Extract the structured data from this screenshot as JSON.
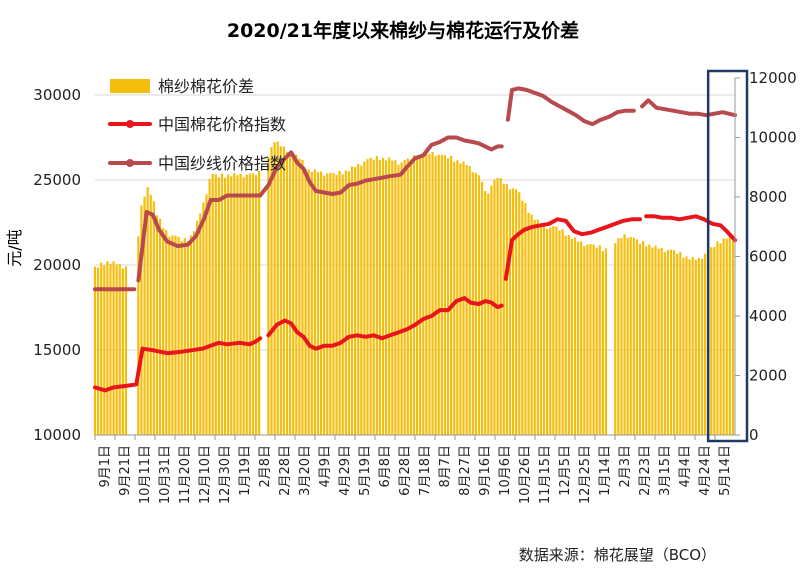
{
  "chart_data": {
    "type": "bar",
    "title": "2020/21年度以来棉纱与棉花运行及价差",
    "ylabel": "元/吨",
    "source": "数据来源：棉花展望（BCO）",
    "ylim": [
      10000,
      31000
    ],
    "y_ticks": [
      10000,
      15000,
      20000,
      25000,
      30000
    ],
    "y2lim": [
      0,
      12000
    ],
    "y2_ticks": [
      0,
      2000,
      4000,
      6000,
      8000,
      10000,
      12000
    ],
    "x_tick_labels": [
      "9月1日",
      "9月21日",
      "10月11日",
      "10月31日",
      "11月20日",
      "12月10日",
      "12月30日",
      "1月19日",
      "2月8日",
      "2月28日",
      "3月20日",
      "4月9日",
      "4月29日",
      "5月19日",
      "6月8日",
      "6月28日",
      "7月18日",
      "8月7日",
      "8月27日",
      "9月16日",
      "10月6日",
      "10月26日",
      "11月15日",
      "12月5日",
      "12月25日",
      "1月14日",
      "2月3日",
      "2月23日",
      "3月15日",
      "4月4日",
      "4月24日",
      "5月14日"
    ],
    "legend": [
      "棉纱棉花价差",
      "中国棉花价格指数",
      "中国纱线价格指数"
    ],
    "colors": {
      "spread": "#F5BE0C",
      "cotton": "#E8161B",
      "yarn": "#B84A4D",
      "highlight_box": "#1F3864"
    },
    "x_range": [
      0,
      620
    ],
    "series": [
      {
        "name": "棉纱棉花价差",
        "axis": "left",
        "type": "bar",
        "points": [
          [
            0,
            19800
          ],
          [
            12,
            20200
          ],
          [
            24,
            20000
          ],
          [
            30,
            19900
          ],
          [
            40,
            20000
          ],
          [
            44,
            23200
          ],
          [
            50,
            24500
          ],
          [
            55,
            24200
          ],
          [
            60,
            23000
          ],
          [
            66,
            22200
          ],
          [
            72,
            21800
          ],
          [
            80,
            21600
          ],
          [
            86,
            21400
          ],
          [
            92,
            21600
          ],
          [
            98,
            22300
          ],
          [
            106,
            23800
          ],
          [
            112,
            25300
          ],
          [
            120,
            25200
          ],
          [
            130,
            25300
          ],
          [
            140,
            25300
          ],
          [
            154,
            25300
          ],
          [
            160,
            25400
          ],
          [
            168,
            26500
          ],
          [
            174,
            27300
          ],
          [
            180,
            27000
          ],
          [
            186,
            26800
          ],
          [
            192,
            26500
          ],
          [
            198,
            26300
          ],
          [
            206,
            25600
          ],
          [
            214,
            25500
          ],
          [
            222,
            25400
          ],
          [
            232,
            25300
          ],
          [
            242,
            25500
          ],
          [
            250,
            25700
          ],
          [
            258,
            26000
          ],
          [
            266,
            26200
          ],
          [
            276,
            26300
          ],
          [
            286,
            26200
          ],
          [
            296,
            26000
          ],
          [
            304,
            26200
          ],
          [
            312,
            26400
          ],
          [
            320,
            26500
          ],
          [
            328,
            26600
          ],
          [
            336,
            26400
          ],
          [
            344,
            26300
          ],
          [
            352,
            26100
          ],
          [
            360,
            25900
          ],
          [
            366,
            25600
          ],
          [
            372,
            25200
          ],
          [
            378,
            24400
          ],
          [
            380,
            23800
          ],
          [
            384,
            24800
          ],
          [
            390,
            25200
          ],
          [
            396,
            24800
          ],
          [
            402,
            24600
          ],
          [
            410,
            24300
          ],
          [
            416,
            23600
          ],
          [
            422,
            23000
          ],
          [
            428,
            22600
          ],
          [
            434,
            22400
          ],
          [
            440,
            22200
          ],
          [
            446,
            22200
          ],
          [
            452,
            22000
          ],
          [
            460,
            21700
          ],
          [
            468,
            21400
          ],
          [
            476,
            21200
          ],
          [
            484,
            21100
          ],
          [
            490,
            21000
          ],
          [
            494,
            20900
          ],
          [
            502,
            21300
          ],
          [
            508,
            21500
          ],
          [
            514,
            21800
          ],
          [
            520,
            21600
          ],
          [
            528,
            21300
          ],
          [
            536,
            21200
          ],
          [
            544,
            21000
          ],
          [
            552,
            20900
          ],
          [
            560,
            20800
          ],
          [
            568,
            20600
          ],
          [
            576,
            20400
          ],
          [
            584,
            20300
          ],
          [
            590,
            20600
          ],
          [
            596,
            20900
          ],
          [
            602,
            21200
          ],
          [
            608,
            21500
          ],
          [
            614,
            21700
          ],
          [
            620,
            21300
          ]
        ],
        "gaps": [
          [
            31,
            40
          ],
          [
            161,
            168
          ],
          [
            381,
            384
          ],
          [
            495,
            502
          ]
        ]
      },
      {
        "name": "中国棉花价格指数",
        "axis": "right",
        "type": "line",
        "points": [
          [
            0,
            1600
          ],
          [
            10,
            1500
          ],
          [
            18,
            1600
          ],
          [
            30,
            1650
          ],
          [
            40,
            1700
          ],
          [
            46,
            2900
          ],
          [
            56,
            2850
          ],
          [
            70,
            2750
          ],
          [
            84,
            2800
          ],
          [
            94,
            2850
          ],
          [
            104,
            2900
          ],
          [
            112,
            3000
          ],
          [
            120,
            3100
          ],
          [
            128,
            3050
          ],
          [
            140,
            3100
          ],
          [
            150,
            3050
          ],
          [
            156,
            3150
          ],
          [
            160,
            3250
          ],
          [
            168,
            3350
          ],
          [
            176,
            3700
          ],
          [
            184,
            3850
          ],
          [
            190,
            3750
          ],
          [
            196,
            3450
          ],
          [
            202,
            3300
          ],
          [
            208,
            3000
          ],
          [
            214,
            2900
          ],
          [
            222,
            3000
          ],
          [
            230,
            3000
          ],
          [
            238,
            3100
          ],
          [
            246,
            3300
          ],
          [
            254,
            3350
          ],
          [
            262,
            3300
          ],
          [
            270,
            3350
          ],
          [
            278,
            3250
          ],
          [
            286,
            3350
          ],
          [
            294,
            3450
          ],
          [
            302,
            3550
          ],
          [
            310,
            3700
          ],
          [
            318,
            3900
          ],
          [
            326,
            4000
          ],
          [
            334,
            4200
          ],
          [
            342,
            4200
          ],
          [
            350,
            4500
          ],
          [
            358,
            4600
          ],
          [
            364,
            4450
          ],
          [
            372,
            4400
          ],
          [
            378,
            4500
          ],
          [
            384,
            4450
          ],
          [
            390,
            4300
          ],
          [
            394,
            4350
          ],
          [
            398,
            5250
          ],
          [
            404,
            6550
          ],
          [
            410,
            6750
          ],
          [
            416,
            6900
          ],
          [
            424,
            7000
          ],
          [
            432,
            7050
          ],
          [
            440,
            7100
          ],
          [
            448,
            7250
          ],
          [
            456,
            7200
          ],
          [
            464,
            6850
          ],
          [
            472,
            6750
          ],
          [
            480,
            6800
          ],
          [
            488,
            6900
          ],
          [
            496,
            7000
          ],
          [
            504,
            7100
          ],
          [
            512,
            7200
          ],
          [
            520,
            7250
          ],
          [
            528,
            7250
          ],
          [
            534,
            7350
          ],
          [
            542,
            7350
          ],
          [
            550,
            7300
          ],
          [
            558,
            7300
          ],
          [
            566,
            7250
          ],
          [
            574,
            7300
          ],
          [
            582,
            7350
          ],
          [
            590,
            7250
          ],
          [
            598,
            7100
          ],
          [
            606,
            7050
          ],
          [
            612,
            6850
          ],
          [
            620,
            6550
          ]
        ],
        "gaps": [
          [
            160,
            168
          ],
          [
            394,
            398
          ],
          [
            528,
            534
          ]
        ]
      },
      {
        "name": "中国纱线价格指数",
        "axis": "right",
        "type": "line",
        "points": [
          [
            0,
            4900
          ],
          [
            20,
            4900
          ],
          [
            38,
            4900
          ],
          [
            42,
            5200
          ],
          [
            50,
            7500
          ],
          [
            56,
            7400
          ],
          [
            62,
            6900
          ],
          [
            70,
            6500
          ],
          [
            80,
            6350
          ],
          [
            90,
            6400
          ],
          [
            98,
            6700
          ],
          [
            106,
            7300
          ],
          [
            112,
            7900
          ],
          [
            120,
            7900
          ],
          [
            128,
            8050
          ],
          [
            140,
            8050
          ],
          [
            150,
            8050
          ],
          [
            160,
            8050
          ],
          [
            168,
            8400
          ],
          [
            176,
            9000
          ],
          [
            184,
            9300
          ],
          [
            190,
            9500
          ],
          [
            196,
            9150
          ],
          [
            202,
            8950
          ],
          [
            208,
            8500
          ],
          [
            214,
            8200
          ],
          [
            222,
            8150
          ],
          [
            230,
            8100
          ],
          [
            238,
            8150
          ],
          [
            246,
            8400
          ],
          [
            254,
            8450
          ],
          [
            262,
            8550
          ],
          [
            270,
            8600
          ],
          [
            278,
            8650
          ],
          [
            286,
            8700
          ],
          [
            296,
            8750
          ],
          [
            302,
            9000
          ],
          [
            310,
            9300
          ],
          [
            318,
            9400
          ],
          [
            326,
            9750
          ],
          [
            334,
            9850
          ],
          [
            342,
            10000
          ],
          [
            350,
            10000
          ],
          [
            358,
            9900
          ],
          [
            366,
            9850
          ],
          [
            372,
            9800
          ],
          [
            378,
            9700
          ],
          [
            384,
            9600
          ],
          [
            390,
            9700
          ],
          [
            394,
            9700
          ],
          [
            400,
            10600
          ],
          [
            404,
            11600
          ],
          [
            410,
            11650
          ],
          [
            418,
            11600
          ],
          [
            426,
            11500
          ],
          [
            434,
            11400
          ],
          [
            442,
            11200
          ],
          [
            450,
            11050
          ],
          [
            458,
            10900
          ],
          [
            466,
            10750
          ],
          [
            474,
            10550
          ],
          [
            482,
            10450
          ],
          [
            490,
            10600
          ],
          [
            498,
            10700
          ],
          [
            506,
            10850
          ],
          [
            514,
            10900
          ],
          [
            522,
            10900
          ],
          [
            530,
            11050
          ],
          [
            536,
            11250
          ],
          [
            544,
            11000
          ],
          [
            552,
            10950
          ],
          [
            560,
            10900
          ],
          [
            568,
            10850
          ],
          [
            576,
            10800
          ],
          [
            584,
            10800
          ],
          [
            592,
            10750
          ],
          [
            600,
            10800
          ],
          [
            608,
            10850
          ],
          [
            614,
            10800
          ],
          [
            620,
            10750
          ]
        ],
        "gaps": [
          [
            38,
            42
          ],
          [
            394,
            400
          ],
          [
            522,
            530
          ]
        ]
      }
    ],
    "highlight_x": [
      594,
      620
    ]
  }
}
